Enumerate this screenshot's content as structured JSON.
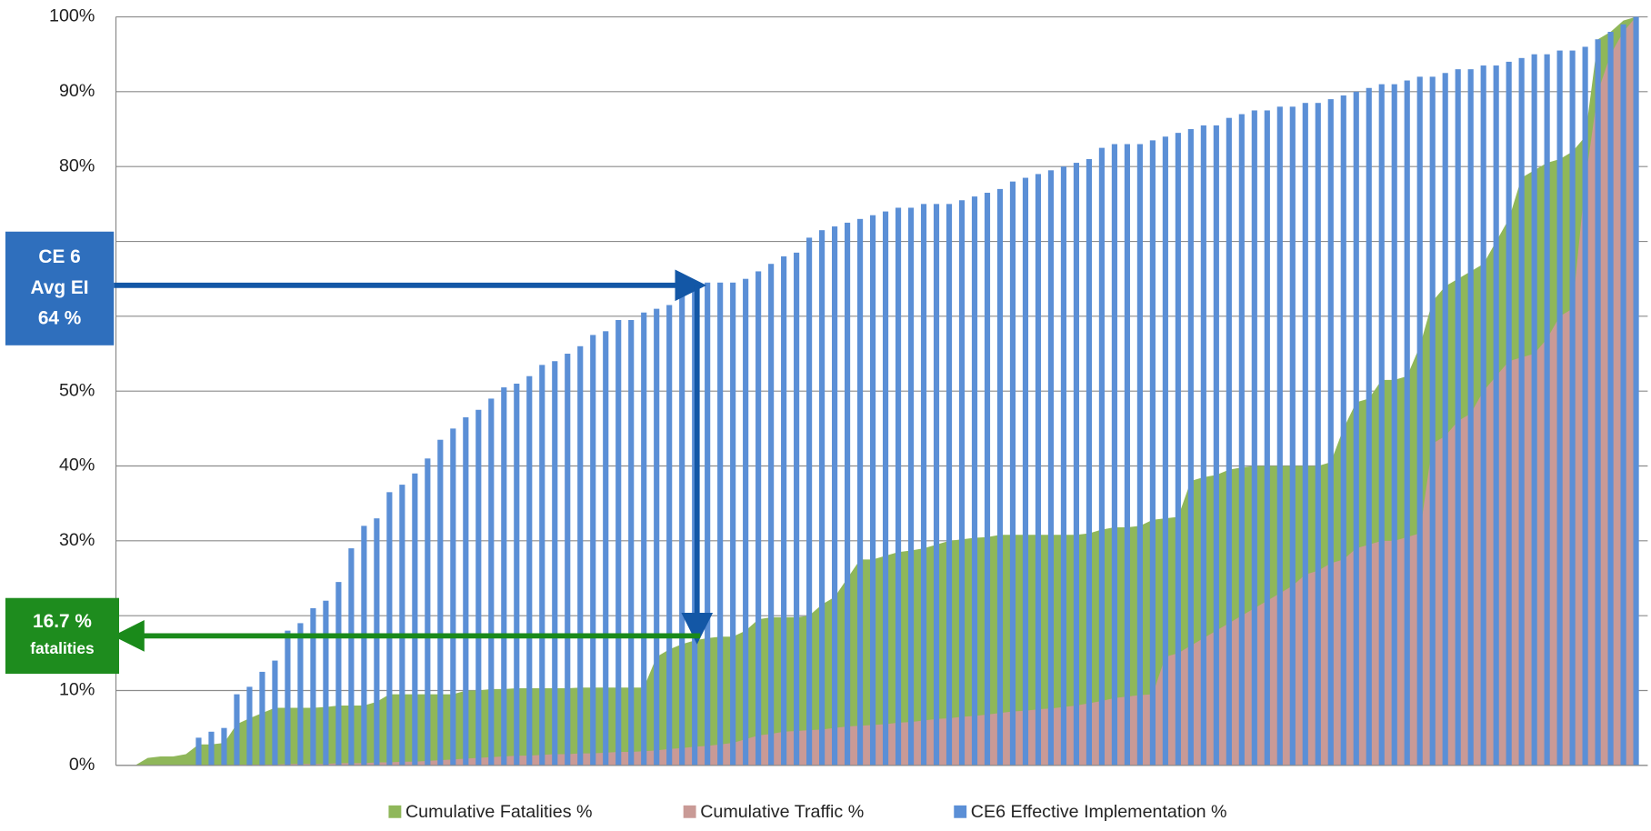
{
  "chart_data": {
    "type": "combo",
    "ylim": [
      0,
      100
    ],
    "yticks": [
      {
        "value": 0,
        "label": "0%"
      },
      {
        "value": 10,
        "label": "10%"
      },
      {
        "value": 20,
        "label": "20%"
      },
      {
        "value": 30,
        "label": "30%"
      },
      {
        "value": 40,
        "label": "40%"
      },
      {
        "value": 50,
        "label": "50%"
      },
      {
        "value": 60,
        "label": "60%"
      },
      {
        "value": 70,
        "label": "70%"
      },
      {
        "value": 80,
        "label": "80%"
      },
      {
        "value": 90,
        "label": "90%"
      },
      {
        "value": 100,
        "label": "100%"
      }
    ],
    "grid": true,
    "legend": "bottom",
    "series": [
      {
        "name": "Cumulative Fatalities %",
        "color": "#8fb75a",
        "type": "area",
        "values": [
          0,
          0,
          1,
          1.2,
          1.2,
          1.5,
          2.8,
          2.8,
          3,
          5.5,
          6.3,
          7,
          7.7,
          7.7,
          7.7,
          7.7,
          7.8,
          8,
          8,
          8,
          8.5,
          9.5,
          9.5,
          9.5,
          9.5,
          9.5,
          9.5,
          10,
          10,
          10.2,
          10.2,
          10.3,
          10.3,
          10.3,
          10.3,
          10.3,
          10.4,
          10.4,
          10.4,
          10.4,
          10.4,
          10.4,
          14.5,
          15.5,
          16.2,
          16.7,
          17,
          17.2,
          17.2,
          18,
          19.5,
          19.8,
          19.8,
          19.8,
          20,
          21.5,
          22.5,
          25,
          27.5,
          27.5,
          28,
          28.5,
          28.7,
          29,
          29.5,
          30,
          30.2,
          30.4,
          30.5,
          30.8,
          30.8,
          30.8,
          30.8,
          30.8,
          30.8,
          30.8,
          31,
          31.5,
          31.8,
          31.8,
          32,
          32.8,
          33,
          33.2,
          38,
          38.5,
          38.8,
          39.5,
          39.8,
          40,
          40,
          40,
          40,
          40,
          40,
          40.5,
          45,
          48.5,
          49,
          51.5,
          51.5,
          52,
          56,
          62,
          64,
          65,
          66,
          67,
          70,
          73,
          78.5,
          79.5,
          80.5,
          81,
          82,
          84,
          97,
          98,
          99.5,
          100
        ]
      },
      {
        "name": "Cumulative Traffic %",
        "color": "#c99a96",
        "type": "area",
        "values": [
          0,
          0,
          0,
          0,
          0,
          0,
          0,
          0,
          0,
          0.1,
          0.1,
          0.1,
          0.1,
          0.2,
          0.2,
          0.2,
          0.2,
          0.3,
          0.3,
          0.3,
          0.4,
          0.4,
          0.5,
          0.5,
          0.6,
          0.7,
          0.8,
          0.9,
          1,
          1.1,
          1.2,
          1.3,
          1.3,
          1.4,
          1.5,
          1.5,
          1.6,
          1.6,
          1.7,
          1.8,
          1.8,
          1.9,
          2,
          2.2,
          2.3,
          2.5,
          2.6,
          2.8,
          3,
          3.5,
          4,
          4.2,
          4.5,
          4.6,
          4.7,
          4.8,
          5,
          5.2,
          5.3,
          5.4,
          5.5,
          5.7,
          5.8,
          6,
          6.2,
          6.3,
          6.5,
          6.6,
          6.8,
          7,
          7.2,
          7.3,
          7.5,
          7.6,
          7.8,
          8,
          8.3,
          8.6,
          9,
          9.2,
          9.4,
          9.5,
          14.5,
          15,
          16,
          17,
          18,
          19,
          20,
          21,
          22,
          23,
          24,
          25.5,
          26,
          27,
          27.5,
          29,
          29.5,
          30,
          30,
          30.5,
          31,
          43,
          44,
          46,
          47,
          50,
          52,
          54,
          54.5,
          55,
          57,
          60,
          61,
          78,
          90,
          95,
          98,
          100
        ]
      },
      {
        "name": "CE6 Effective Implementation %",
        "color": "#5b8fd6",
        "type": "bar",
        "values": [
          0,
          0,
          0,
          0,
          0,
          0,
          3.7,
          4.5,
          5,
          9.5,
          10.5,
          12.5,
          14,
          18,
          19,
          21,
          22,
          24.5,
          29,
          32,
          33,
          36.5,
          37.5,
          39,
          41,
          43.5,
          45,
          46.5,
          47.5,
          49,
          50.5,
          51,
          52,
          53.5,
          54,
          55,
          56,
          57.5,
          58,
          59.5,
          59.5,
          60.5,
          61,
          61.5,
          63,
          64,
          64.5,
          64.5,
          64.5,
          65,
          66,
          67,
          68,
          68.5,
          70.5,
          71.5,
          72,
          72.5,
          73,
          73.5,
          74,
          74.5,
          74.5,
          75,
          75,
          75,
          75.5,
          76,
          76.5,
          77,
          78,
          78.5,
          79,
          79.5,
          80,
          80.5,
          81,
          82.5,
          83,
          83,
          83,
          83.5,
          84,
          84.5,
          85,
          85.5,
          85.5,
          86.5,
          87,
          87.5,
          87.5,
          88,
          88,
          88.5,
          88.5,
          89,
          89.5,
          90,
          90.5,
          91,
          91,
          91.5,
          92,
          92,
          92.5,
          93,
          93,
          93.5,
          93.5,
          94,
          94.5,
          95,
          95,
          95.5,
          95.5,
          96,
          97,
          98,
          99,
          100
        ]
      }
    ],
    "annotations": [
      {
        "lines": [
          "CE 6",
          "Avg EI",
          "64 %"
        ],
        "color": "#2f6fbd"
      },
      {
        "lines": [
          "16.7 %",
          "fatalities"
        ],
        "color": "#1e8c1e"
      }
    ]
  }
}
